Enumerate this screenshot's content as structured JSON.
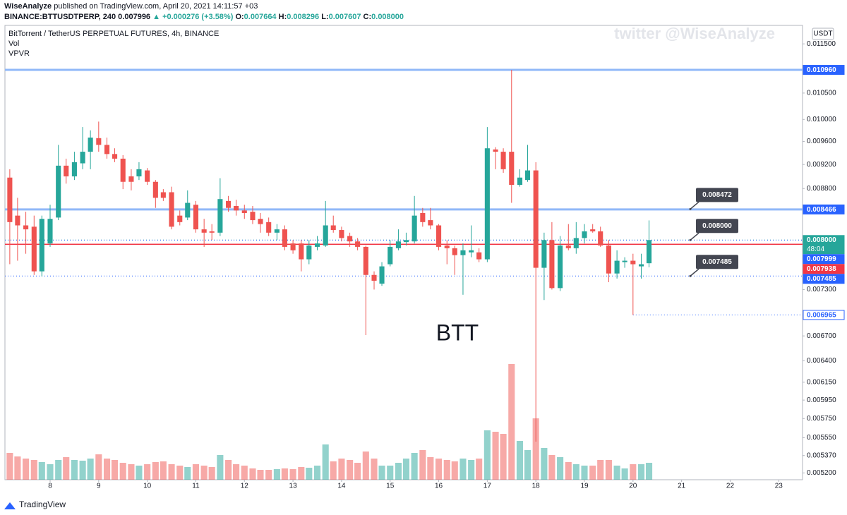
{
  "header": {
    "author": "WiseAnalyze",
    "published": "published on TradingView.com, April 20, 2021 14:11:57 +03",
    "symbol": "BINANCE:BTTUSDTPERP, 240",
    "last": "0.007996",
    "change": "▲ +0.000276 (+3.58%)",
    "ohlc": [
      "O:",
      "0.007664",
      "H:",
      "0.008296",
      "L:",
      "0.007607",
      "C:",
      "0.008000"
    ]
  },
  "chart_data": {
    "type": "candlestick",
    "title": "BitTorrent / TetherUS PERPETUAL FUTURES, 4h, BINANCE",
    "indicators": [
      "Vol",
      "VPVR"
    ],
    "watermark": "twitter @WiseAnalyze",
    "annotation": "BTT",
    "currency": "USDT",
    "log_scale": true,
    "up_color": "#26a69a",
    "down_color": "#ef5350",
    "x": [
      7.17,
      7.33,
      7.5,
      7.67,
      7.83,
      8,
      8.17,
      8.33,
      8.5,
      8.67,
      8.83,
      9,
      9.17,
      9.33,
      9.5,
      9.67,
      9.83,
      10,
      10.17,
      10.33,
      10.5,
      10.67,
      10.83,
      11,
      11.17,
      11.33,
      11.5,
      11.67,
      11.83,
      12,
      12.17,
      12.33,
      12.5,
      12.67,
      12.83,
      13,
      13.17,
      13.33,
      13.5,
      13.67,
      13.83,
      14,
      14.17,
      14.33,
      14.5,
      14.67,
      14.83,
      15,
      15.17,
      15.33,
      15.5,
      15.67,
      15.83,
      16,
      16.17,
      16.33,
      16.5,
      16.67,
      16.83,
      17,
      17.17,
      17.33,
      17.5,
      17.67,
      17.83,
      18,
      18.17,
      18.33,
      18.5,
      18.67,
      18.83,
      19,
      19.17,
      19.33,
      19.5,
      19.67,
      19.83,
      20,
      20.17,
      20.33
    ],
    "open": [
      0.00898,
      0.00837,
      0.00822,
      0.0082,
      0.00755,
      0.00795,
      0.00834,
      0.00918,
      0.009,
      0.00922,
      0.00942,
      0.00966,
      0.00954,
      0.00938,
      0.0093,
      0.009,
      0.009,
      0.0091,
      0.00891,
      0.00874,
      0.00874,
      0.00837,
      0.00834,
      0.00854,
      0.00816,
      0.00813,
      0.00811,
      0.0086,
      0.00852,
      0.00845,
      0.00843,
      0.00832,
      0.00827,
      0.00811,
      0.00816,
      0.00795,
      0.00795,
      0.00772,
      0.0079,
      0.00792,
      0.00822,
      0.00815,
      0.00806,
      0.00798,
      0.0079,
      0.0075,
      0.00738,
      0.00765,
      0.00788,
      0.00797,
      0.00798,
      0.00841,
      0.0083,
      0.00822,
      0.00792,
      0.00788,
      0.00778,
      0.00782,
      0.00782,
      0.00772,
      0.00946,
      0.00942,
      0.00942,
      0.00886,
      0.00894,
      0.0091,
      0.0076,
      0.008,
      0.00732,
      0.00792,
      0.00788,
      0.00803,
      0.00816,
      0.00813,
      0.00792,
      0.00752,
      0.00768,
      0.0077,
      0.00762,
      0.007664
    ],
    "high": [
      0.00912,
      0.00865,
      0.00843,
      0.00837,
      0.00837,
      0.00854,
      0.00954,
      0.0093,
      0.00942,
      0.00986,
      0.0098,
      0.00996,
      0.00967,
      0.00948,
      0.00936,
      0.00912,
      0.00924,
      0.00914,
      0.00894,
      0.00879,
      0.00883,
      0.00845,
      0.00877,
      0.0086,
      0.00832,
      0.00824,
      0.00897,
      0.00868,
      0.00862,
      0.00854,
      0.00852,
      0.00841,
      0.00834,
      0.00824,
      0.00822,
      0.008,
      0.008,
      0.008,
      0.00806,
      0.0086,
      0.00837,
      0.0082,
      0.00811,
      0.00803,
      0.00792,
      0.00755,
      0.00768,
      0.008,
      0.00816,
      0.00811,
      0.00868,
      0.00849,
      0.00849,
      0.00824,
      0.008,
      0.00792,
      0.00795,
      0.00822,
      0.00788,
      0.00986,
      0.0095,
      0.00948,
      0.01096,
      0.00912,
      0.00954,
      0.00924,
      0.00811,
      0.00827,
      0.00806,
      0.00824,
      0.00827,
      0.00824,
      0.00824,
      0.0082,
      0.008,
      0.00785,
      0.00775,
      0.0078,
      0.0078,
      0.008296
    ],
    "low": [
      0.00765,
      0.0077,
      0.0078,
      0.0075,
      0.00748,
      0.0079,
      0.0083,
      0.00888,
      0.00894,
      0.00912,
      0.00912,
      0.00942,
      0.0093,
      0.00924,
      0.00879,
      0.00877,
      0.00894,
      0.00886,
      0.00849,
      0.0086,
      0.00816,
      0.00822,
      0.0083,
      0.00811,
      0.0079,
      0.008,
      0.00806,
      0.00843,
      0.00837,
      0.00832,
      0.00824,
      0.00811,
      0.00806,
      0.008,
      0.00785,
      0.0078,
      0.00755,
      0.00765,
      0.00785,
      0.0079,
      0.00811,
      0.00798,
      0.0079,
      0.00785,
      0.00671,
      0.0073,
      0.00735,
      0.00762,
      0.00785,
      0.00792,
      0.00795,
      0.0082,
      0.00816,
      0.00785,
      0.00765,
      0.0075,
      0.00723,
      0.00775,
      0.00768,
      0.00768,
      0.00912,
      0.00906,
      0.00857,
      0.00883,
      0.00891,
      0.00551,
      0.00716,
      0.0073,
      0.00728,
      0.00785,
      0.0078,
      0.00795,
      0.00811,
      0.0079,
      0.0074,
      0.00745,
      0.0076,
      0.006965,
      0.00745,
      0.007607
    ],
    "close": [
      0.00827,
      0.00822,
      0.00816,
      0.00755,
      0.00832,
      0.00832,
      0.00918,
      0.009,
      0.00924,
      0.00942,
      0.00967,
      0.00954,
      0.00938,
      0.0093,
      0.00891,
      0.00891,
      0.00912,
      0.00891,
      0.00865,
      0.00865,
      0.0082,
      0.00827,
      0.00857,
      0.00816,
      0.00811,
      0.00811,
      0.00863,
      0.00849,
      0.00845,
      0.00841,
      0.0083,
      0.00824,
      0.00811,
      0.00816,
      0.0079,
      0.00785,
      0.00772,
      0.00792,
      0.00795,
      0.00822,
      0.00815,
      0.00803,
      0.00798,
      0.0079,
      0.0075,
      0.00742,
      0.00762,
      0.0079,
      0.00798,
      0.008,
      0.00837,
      0.00827,
      0.00822,
      0.0079,
      0.00788,
      0.00778,
      0.00785,
      0.00785,
      0.00772,
      0.00948,
      0.00942,
      0.00912,
      0.00886,
      0.00898,
      0.0091,
      0.0076,
      0.008,
      0.00732,
      0.00792,
      0.00788,
      0.00803,
      0.00813,
      0.00813,
      0.00792,
      0.00752,
      0.0077,
      0.0077,
      0.00765,
      0.00765,
      0.008
    ],
    "volume": [
      38,
      33,
      30,
      28,
      25,
      22,
      28,
      32,
      28,
      27,
      30,
      36,
      30,
      28,
      24,
      22,
      20,
      22,
      25,
      26,
      22,
      20,
      18,
      22,
      20,
      18,
      35,
      28,
      22,
      20,
      16,
      14,
      14,
      15,
      16,
      15,
      18,
      17,
      20,
      50,
      26,
      30,
      28,
      24,
      40,
      30,
      20,
      20,
      24,
      30,
      38,
      42,
      32,
      30,
      28,
      26,
      30,
      28,
      30,
      70,
      68,
      65,
      164,
      55,
      42,
      87,
      45,
      35,
      32,
      25,
      22,
      20,
      20,
      28,
      28,
      20,
      16,
      22,
      22,
      24
    ],
    "xlim": [
      7.07,
      23.49
    ],
    "xticks": [
      8,
      9,
      10,
      11,
      12,
      13,
      14,
      15,
      16,
      17,
      18,
      19,
      20,
      21,
      22,
      23
    ],
    "ylim": [
      0.005135,
      0.0119
    ],
    "yticks": [
      {
        "value": 0.0115,
        "label": "0.011500"
      },
      {
        "value": 0.0105,
        "label": "0.010500"
      },
      {
        "value": 0.01,
        "label": "0.010000"
      },
      {
        "value": 0.0096,
        "label": "0.009600"
      },
      {
        "value": 0.0092,
        "label": "0.009200"
      },
      {
        "value": 0.0088,
        "label": "0.008800"
      },
      {
        "value": 0.0073,
        "label": "0.007300"
      },
      {
        "value": 0.0067,
        "label": "0.006700"
      },
      {
        "value": 0.0064,
        "label": "0.006400"
      },
      {
        "value": 0.00615,
        "label": "0.006150"
      },
      {
        "value": 0.00595,
        "label": "0.005950"
      },
      {
        "value": 0.00575,
        "label": "0.005750"
      },
      {
        "value": 0.00555,
        "label": "0.005550"
      },
      {
        "value": 0.00537,
        "label": "0.005370"
      },
      {
        "value": 0.0052,
        "label": "0.005200"
      }
    ],
    "y2lim": [
      0,
      644
    ],
    "levels": [
      {
        "value": 0.01096,
        "label": "0.010960",
        "color": "#2962ff",
        "line": "solid",
        "box": "filled"
      },
      {
        "value": 0.008466,
        "label": "0.008466",
        "color": "#2962ff",
        "line": "solid",
        "box": "filled"
      },
      {
        "value": 0.008,
        "label": "0.008000",
        "color": "#26a69a",
        "line": "dotted",
        "box": "filled",
        "countdown": "48:04"
      },
      {
        "value": 0.007999,
        "label": "0.007999",
        "color": "#2962ff",
        "line": "dotted",
        "box": "filled"
      },
      {
        "value": 0.007938,
        "label": "0.007938",
        "color": "#f23645",
        "line": "solid",
        "box": "filled"
      },
      {
        "value": 0.007485,
        "label": "0.007485",
        "color": "#2962ff",
        "line": "dotted",
        "box": "filled"
      },
      {
        "value": 0.006965,
        "label": "0.006965",
        "color": "#2962ff",
        "line": "dotted",
        "box": "outline",
        "from": 20
      }
    ],
    "callouts": [
      {
        "value": 0.008472,
        "label": "0.008472"
      },
      {
        "value": 0.008,
        "label": "0.008000"
      },
      {
        "value": 0.007485,
        "label": "0.007485"
      }
    ]
  },
  "footer": {
    "brand": "TradingView"
  }
}
